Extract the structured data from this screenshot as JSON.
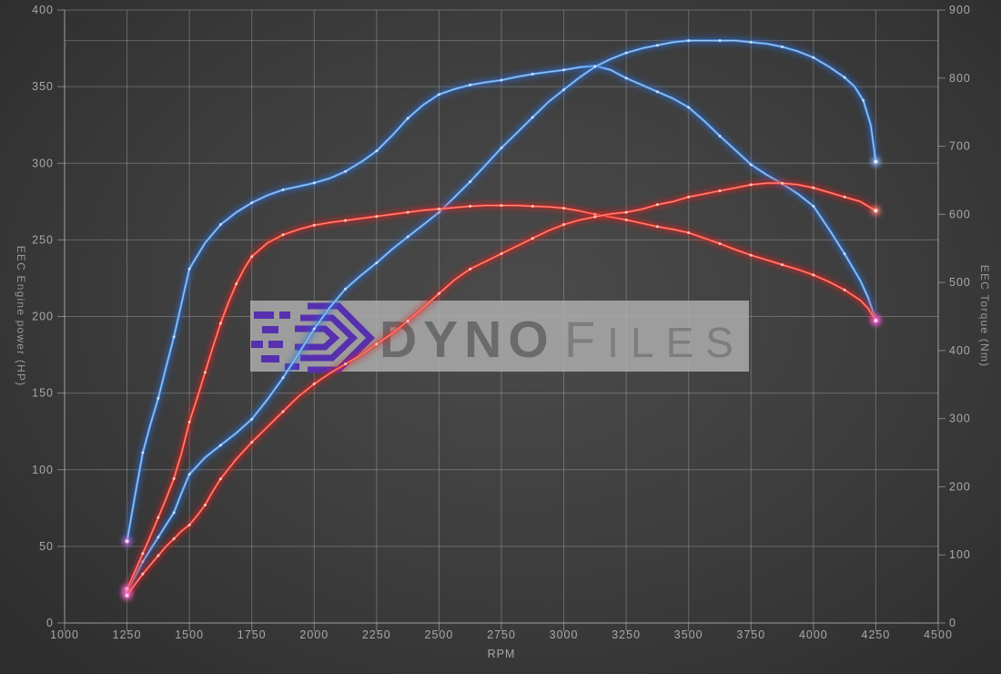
{
  "watermark": {
    "bold": "Dyno",
    "light": "Files",
    "logo_color": "#5630ae",
    "band_color": "#adadad"
  },
  "chart_data": {
    "type": "line",
    "title": "",
    "xlabel": "RPM",
    "ylabel_left": "EEC Engine power (HP)",
    "ylabel_right": "EEC Torque (Nm)",
    "x_range": [
      1000,
      4500
    ],
    "x_ticks": [
      1000,
      1250,
      1500,
      1750,
      2000,
      2250,
      2500,
      2750,
      3000,
      3250,
      3500,
      3750,
      4000,
      4250,
      4500
    ],
    "y_left_range": [
      0,
      400
    ],
    "y_left_ticks": [
      0,
      50,
      100,
      150,
      200,
      250,
      300,
      350,
      400
    ],
    "y_right_range": [
      0,
      900
    ],
    "y_right_ticks": [
      0,
      100,
      200,
      300,
      400,
      500,
      600,
      700,
      800,
      900
    ],
    "grid": true,
    "legend": "none",
    "peak_line": {
      "axis": "left",
      "value": 380
    },
    "colors": {
      "tuned": "#2b6cd9",
      "stock": "#dc1c1c"
    },
    "series": [
      {
        "name": "tuned-torque",
        "axis": "right",
        "unit": "Nm",
        "color": "#2b6cd9",
        "points": [
          [
            1250,
            120
          ],
          [
            1281,
            185
          ],
          [
            1313,
            250
          ],
          [
            1344,
            292
          ],
          [
            1375,
            330
          ],
          [
            1406,
            375
          ],
          [
            1438,
            420
          ],
          [
            1469,
            470
          ],
          [
            1500,
            520
          ],
          [
            1563,
            558
          ],
          [
            1625,
            585
          ],
          [
            1688,
            603
          ],
          [
            1750,
            617
          ],
          [
            1813,
            628
          ],
          [
            1875,
            636
          ],
          [
            1938,
            641
          ],
          [
            2000,
            646
          ],
          [
            2063,
            653
          ],
          [
            2125,
            663
          ],
          [
            2188,
            677
          ],
          [
            2250,
            693
          ],
          [
            2313,
            716
          ],
          [
            2375,
            741
          ],
          [
            2438,
            761
          ],
          [
            2500,
            776
          ],
          [
            2563,
            784
          ],
          [
            2625,
            790
          ],
          [
            2688,
            794
          ],
          [
            2750,
            797
          ],
          [
            2813,
            802
          ],
          [
            2875,
            806
          ],
          [
            2938,
            809
          ],
          [
            3000,
            812
          ],
          [
            3063,
            816
          ],
          [
            3125,
            818
          ],
          [
            3188,
            812
          ],
          [
            3250,
            800
          ],
          [
            3313,
            790
          ],
          [
            3375,
            780
          ],
          [
            3438,
            770
          ],
          [
            3500,
            757
          ],
          [
            3563,
            737
          ],
          [
            3625,
            715
          ],
          [
            3688,
            694
          ],
          [
            3750,
            673
          ],
          [
            3813,
            658
          ],
          [
            3875,
            645
          ],
          [
            3938,
            630
          ],
          [
            4000,
            612
          ],
          [
            4063,
            578
          ],
          [
            4125,
            542
          ],
          [
            4188,
            503
          ],
          [
            4219,
            478
          ],
          [
            4250,
            445
          ]
        ]
      },
      {
        "name": "tuned-power",
        "axis": "left",
        "unit": "HP",
        "color": "#2b6cd9",
        "points": [
          [
            1250,
            20
          ],
          [
            1281,
            30
          ],
          [
            1313,
            40
          ],
          [
            1344,
            48
          ],
          [
            1375,
            56
          ],
          [
            1406,
            64
          ],
          [
            1438,
            72
          ],
          [
            1469,
            85
          ],
          [
            1500,
            97
          ],
          [
            1563,
            108
          ],
          [
            1625,
            116
          ],
          [
            1688,
            124
          ],
          [
            1750,
            133
          ],
          [
            1813,
            146
          ],
          [
            1875,
            160
          ],
          [
            1938,
            176
          ],
          [
            2000,
            192
          ],
          [
            2063,
            206
          ],
          [
            2125,
            218
          ],
          [
            2188,
            227
          ],
          [
            2250,
            235
          ],
          [
            2313,
            244
          ],
          [
            2375,
            252
          ],
          [
            2438,
            260
          ],
          [
            2500,
            268
          ],
          [
            2563,
            278
          ],
          [
            2625,
            288
          ],
          [
            2688,
            299
          ],
          [
            2750,
            310
          ],
          [
            2813,
            320
          ],
          [
            2875,
            330
          ],
          [
            2938,
            340
          ],
          [
            3000,
            348
          ],
          [
            3063,
            356
          ],
          [
            3125,
            363
          ],
          [
            3188,
            368
          ],
          [
            3250,
            372
          ],
          [
            3313,
            375
          ],
          [
            3375,
            377
          ],
          [
            3438,
            379
          ],
          [
            3500,
            380
          ],
          [
            3563,
            380
          ],
          [
            3625,
            380
          ],
          [
            3688,
            380
          ],
          [
            3750,
            379
          ],
          [
            3813,
            378
          ],
          [
            3875,
            376
          ],
          [
            3938,
            373
          ],
          [
            4000,
            369
          ],
          [
            4063,
            363
          ],
          [
            4125,
            356
          ],
          [
            4165,
            350
          ],
          [
            4200,
            341
          ],
          [
            4230,
            325
          ],
          [
            4250,
            301
          ]
        ]
      },
      {
        "name": "stock-torque",
        "axis": "right",
        "unit": "Nm",
        "color": "#dc1c1c",
        "points": [
          [
            1250,
            50
          ],
          [
            1281,
            75
          ],
          [
            1313,
            102
          ],
          [
            1344,
            128
          ],
          [
            1375,
            155
          ],
          [
            1406,
            182
          ],
          [
            1438,
            212
          ],
          [
            1469,
            250
          ],
          [
            1500,
            295
          ],
          [
            1531,
            330
          ],
          [
            1563,
            368
          ],
          [
            1594,
            405
          ],
          [
            1625,
            440
          ],
          [
            1656,
            470
          ],
          [
            1688,
            498
          ],
          [
            1719,
            520
          ],
          [
            1750,
            538
          ],
          [
            1813,
            558
          ],
          [
            1875,
            570
          ],
          [
            1938,
            578
          ],
          [
            2000,
            584
          ],
          [
            2063,
            588
          ],
          [
            2125,
            591
          ],
          [
            2188,
            594
          ],
          [
            2250,
            597
          ],
          [
            2313,
            600
          ],
          [
            2375,
            603
          ],
          [
            2438,
            606
          ],
          [
            2500,
            608
          ],
          [
            2563,
            610
          ],
          [
            2625,
            612
          ],
          [
            2688,
            613
          ],
          [
            2750,
            613
          ],
          [
            2813,
            613
          ],
          [
            2875,
            612
          ],
          [
            2938,
            611
          ],
          [
            3000,
            609
          ],
          [
            3063,
            605
          ],
          [
            3125,
            600
          ],
          [
            3188,
            596
          ],
          [
            3250,
            592
          ],
          [
            3313,
            587
          ],
          [
            3375,
            582
          ],
          [
            3438,
            578
          ],
          [
            3500,
            573
          ],
          [
            3563,
            565
          ],
          [
            3625,
            557
          ],
          [
            3688,
            548
          ],
          [
            3750,
            540
          ],
          [
            3813,
            533
          ],
          [
            3875,
            526
          ],
          [
            3938,
            519
          ],
          [
            4000,
            511
          ],
          [
            4063,
            501
          ],
          [
            4125,
            489
          ],
          [
            4188,
            474
          ],
          [
            4219,
            462
          ],
          [
            4250,
            444
          ]
        ]
      },
      {
        "name": "stock-power",
        "axis": "left",
        "unit": "HP",
        "color": "#dc1c1c",
        "points": [
          [
            1250,
            18
          ],
          [
            1281,
            25
          ],
          [
            1313,
            32
          ],
          [
            1344,
            38
          ],
          [
            1375,
            44
          ],
          [
            1406,
            50
          ],
          [
            1438,
            55
          ],
          [
            1469,
            60
          ],
          [
            1500,
            64
          ],
          [
            1531,
            70
          ],
          [
            1563,
            77
          ],
          [
            1594,
            86
          ],
          [
            1625,
            94
          ],
          [
            1688,
            107
          ],
          [
            1750,
            118
          ],
          [
            1813,
            128
          ],
          [
            1875,
            138
          ],
          [
            1938,
            148
          ],
          [
            2000,
            156
          ],
          [
            2063,
            163
          ],
          [
            2125,
            169
          ],
          [
            2188,
            175
          ],
          [
            2250,
            182
          ],
          [
            2313,
            189
          ],
          [
            2375,
            197
          ],
          [
            2438,
            206
          ],
          [
            2500,
            215
          ],
          [
            2563,
            224
          ],
          [
            2625,
            231
          ],
          [
            2688,
            236
          ],
          [
            2750,
            241
          ],
          [
            2813,
            246
          ],
          [
            2875,
            251
          ],
          [
            2938,
            256
          ],
          [
            3000,
            260
          ],
          [
            3063,
            263
          ],
          [
            3125,
            265
          ],
          [
            3188,
            267
          ],
          [
            3250,
            268
          ],
          [
            3313,
            270
          ],
          [
            3375,
            273
          ],
          [
            3438,
            275
          ],
          [
            3500,
            278
          ],
          [
            3563,
            280
          ],
          [
            3625,
            282
          ],
          [
            3688,
            284
          ],
          [
            3750,
            286
          ],
          [
            3813,
            287
          ],
          [
            3875,
            287
          ],
          [
            3938,
            286
          ],
          [
            4000,
            284
          ],
          [
            4063,
            281
          ],
          [
            4125,
            278
          ],
          [
            4188,
            275
          ],
          [
            4219,
            272
          ],
          [
            4250,
            269
          ]
        ]
      }
    ]
  }
}
